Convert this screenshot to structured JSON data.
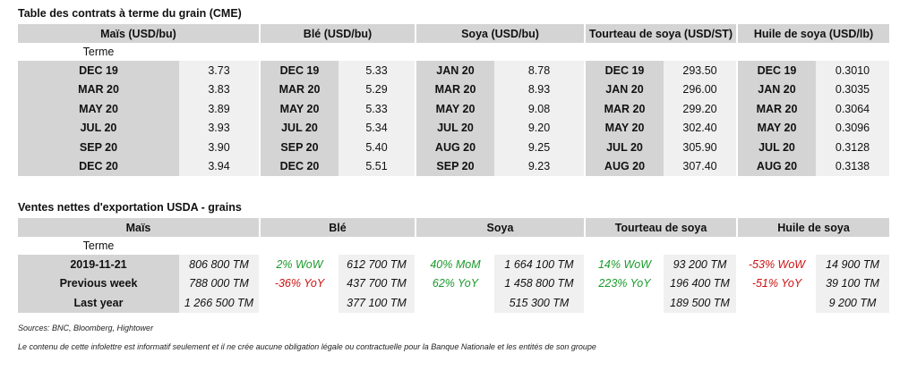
{
  "futures": {
    "title": "Table des contrats à terme du grain (CME)",
    "headers": [
      "Maïs (USD/bu)",
      "Blé (USD/bu)",
      "Soya (USD/bu)",
      "Tourteau de soya (USD/ST)",
      "Huile de soya (USD/lb)"
    ],
    "terme_label": "Terme",
    "rows": [
      [
        "DEC 19",
        "3.73",
        "DEC 19",
        "5.33",
        "JAN 20",
        "8.78",
        "DEC 19",
        "293.50",
        "DEC 19",
        "0.3010"
      ],
      [
        "MAR 20",
        "3.83",
        "MAR 20",
        "5.29",
        "MAR 20",
        "8.93",
        "JAN 20",
        "296.00",
        "JAN 20",
        "0.3035"
      ],
      [
        "MAY 20",
        "3.89",
        "MAY 20",
        "5.33",
        "MAY 20",
        "9.08",
        "MAR 20",
        "299.20",
        "MAR 20",
        "0.3064"
      ],
      [
        "JUL 20",
        "3.93",
        "JUL 20",
        "5.34",
        "JUL 20",
        "9.20",
        "MAY 20",
        "302.40",
        "MAY 20",
        "0.3096"
      ],
      [
        "SEP 20",
        "3.90",
        "SEP 20",
        "5.40",
        "AUG 20",
        "9.25",
        "JUL 20",
        "305.90",
        "JUL 20",
        "0.3128"
      ],
      [
        "DEC 20",
        "3.94",
        "DEC 20",
        "5.51",
        "SEP 20",
        "9.23",
        "AUG 20",
        "307.40",
        "AUG 20",
        "0.3138"
      ]
    ]
  },
  "exports": {
    "title": "Ventes nettes d'exportation USDA - grains",
    "headers": [
      "Maïs",
      "Blé",
      "Soya",
      "Tourteau de soya",
      "Huile de soya"
    ],
    "terme_label": "Terme",
    "rows": [
      {
        "label": "2019-11-21",
        "mais": "806 800 TM",
        "ble_chg": "2% WoW",
        "ble": "612 700 TM",
        "soya_chg": "40% MoM",
        "soya": "1 664 100 TM",
        "tourteau_chg": "14% WoW",
        "tourteau": "93 200 TM",
        "huile_chg": "-53% WoW",
        "huile": "14 900 TM"
      },
      {
        "label": "Previous week",
        "mais": "788 000 TM",
        "ble_chg": "-36% YoY",
        "ble": "437 700 TM",
        "soya_chg": "62% YoY",
        "soya": "1 458 800 TM",
        "tourteau_chg": "223% YoY",
        "tourteau": "196 400 TM",
        "huile_chg": "-51% YoY",
        "huile": "39 100 TM"
      },
      {
        "label": "Last year",
        "mais": "1 266 500 TM",
        "ble_chg": "",
        "ble": "377 100 TM",
        "soya_chg": "",
        "soya": "515 300 TM",
        "tourteau_chg": "",
        "tourteau": "189 500 TM",
        "huile_chg": "",
        "huile": "9 200 TM"
      }
    ],
    "change_colors": {
      "positive": "#1a9a2a",
      "negative": "#cc1111"
    }
  },
  "footer": {
    "sources": "Sources: BNC, Bloomberg, Hightower",
    "disclaimer": "Le contenu de cette infolettre est informatif seulement et il ne crée aucune obligation légale ou contractuelle pour la Banque Nationale et les entités de son groupe"
  }
}
